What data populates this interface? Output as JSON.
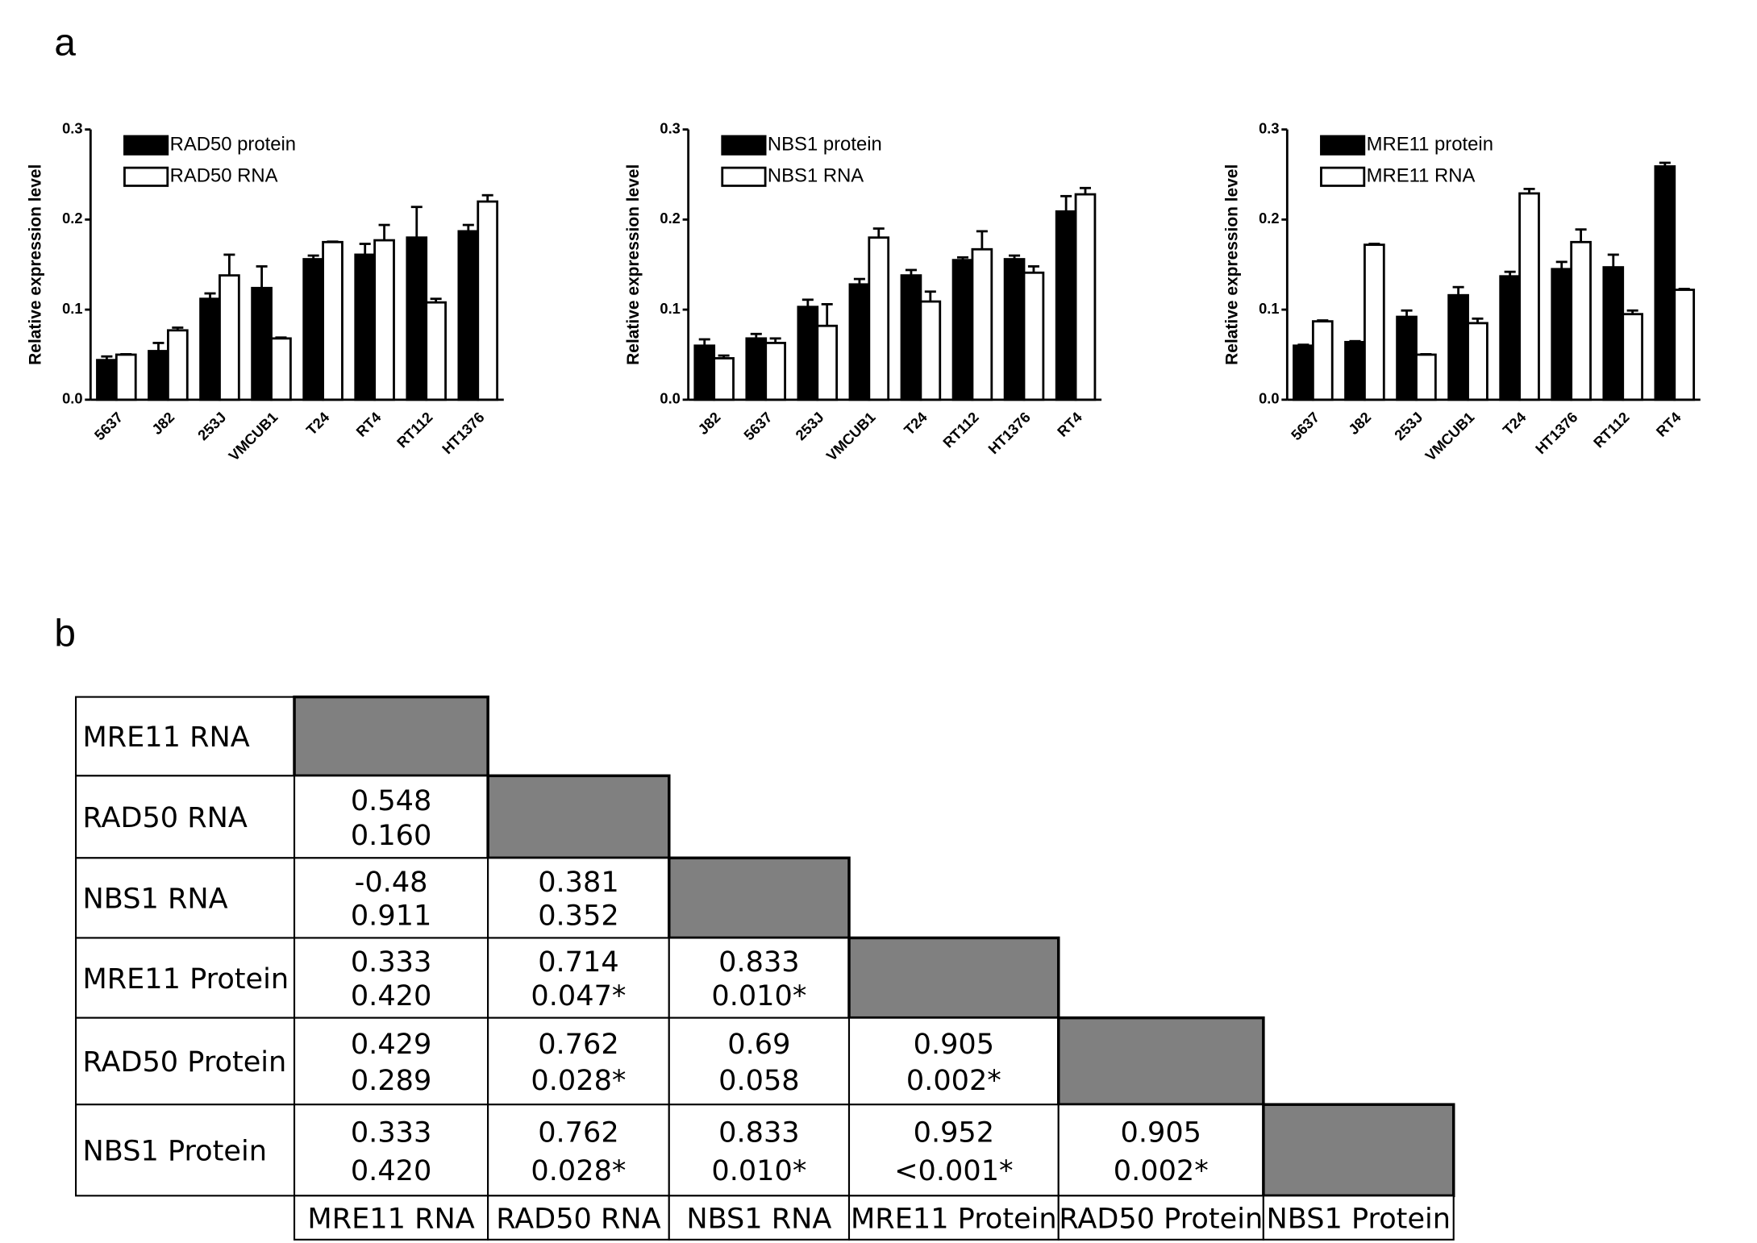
{
  "panel_labels": [
    "a",
    "b"
  ],
  "chart_data": [
    {
      "type": "bar",
      "ylabel": "Relative expression level",
      "categories": [
        "5637",
        "J82",
        "253J",
        "VMCUB1",
        "T24",
        "RT4",
        "RT112",
        "HT1376"
      ],
      "series": [
        {
          "name": "RAD50  protein",
          "color": "#000000",
          "values": [
            0.044,
            0.054,
            0.112,
            0.124,
            0.156,
            0.161,
            0.18,
            0.187
          ],
          "errors": [
            0.004,
            0.009,
            0.006,
            0.024,
            0.004,
            0.012,
            0.034,
            0.007
          ]
        },
        {
          "name": "RAD50  RNA",
          "color": "#ffffff",
          "values": [
            0.05,
            0.077,
            0.138,
            0.068,
            0.175,
            0.177,
            0.108,
            0.22
          ],
          "errors": [
            0.0005,
            0.003,
            0.023,
            0.001,
            0.0005,
            0.017,
            0.004,
            0.007
          ]
        }
      ],
      "ylim": [
        0,
        0.3
      ],
      "yticks": [
        {
          "value": 0,
          "label": "0.0"
        },
        0.1,
        0.2,
        0.3
      ]
    },
    {
      "type": "bar",
      "ylabel": "Relative expression level",
      "categories": [
        "J82",
        "5637",
        "253J",
        "VMCUB1",
        "T24",
        "RT112",
        "HT1376",
        "RT4"
      ],
      "series": [
        {
          "name": "NBS1 protein",
          "color": "#000000",
          "values": [
            0.06,
            0.068,
            0.103,
            0.128,
            0.138,
            0.155,
            0.156,
            0.209
          ],
          "errors": [
            0.007,
            0.005,
            0.008,
            0.006,
            0.006,
            0.003,
            0.004,
            0.017
          ]
        },
        {
          "name": "NBS1 RNA",
          "color": "#ffffff",
          "values": [
            0.046,
            0.063,
            0.082,
            0.18,
            0.109,
            0.167,
            0.141,
            0.228
          ],
          "errors": [
            0.003,
            0.005,
            0.024,
            0.01,
            0.011,
            0.02,
            0.007,
            0.007
          ]
        }
      ],
      "ylim": [
        0,
        0.3
      ],
      "yticks": [
        {
          "value": 0,
          "label": "0.0"
        },
        0.1,
        0.2,
        0.3
      ]
    },
    {
      "type": "bar",
      "ylabel": "Relative expression level",
      "categories": [
        "5637",
        "J82",
        "253J",
        "VMCUB1",
        "T24",
        "HT1376",
        "RT112",
        "RT4"
      ],
      "series": [
        {
          "name": "MRE11 protein",
          "color": "#000000",
          "values": [
            0.06,
            0.064,
            0.092,
            0.116,
            0.137,
            0.145,
            0.147,
            0.259
          ],
          "errors": [
            0.001,
            0.001,
            0.007,
            0.009,
            0.005,
            0.008,
            0.014,
            0.004
          ]
        },
        {
          "name": "MRE11 RNA",
          "color": "#ffffff",
          "values": [
            0.087,
            0.172,
            0.05,
            0.085,
            0.229,
            0.175,
            0.095,
            0.122
          ],
          "errors": [
            0.001,
            0.001,
            0.0005,
            0.005,
            0.005,
            0.014,
            0.004,
            0.001
          ]
        }
      ],
      "ylim": [
        0,
        0.3
      ],
      "yticks": [
        {
          "value": 0,
          "label": "0.0"
        },
        0.1,
        0.2,
        0.3
      ]
    }
  ],
  "table": {
    "columns": [
      "MRE11 RNA",
      "RAD50 RNA",
      "NBS1 RNA",
      "MRE11 Protein",
      "RAD50 Protein",
      "NBS1 Protein"
    ],
    "rows": [
      {
        "label": "MRE11 RNA",
        "cells": []
      },
      {
        "label": "RAD50 RNA",
        "cells": [
          [
            "0.548",
            "0.160"
          ]
        ]
      },
      {
        "label": "NBS1 RNA",
        "cells": [
          [
            "-0.48",
            "0.911"
          ],
          [
            "0.381",
            "0.352"
          ]
        ]
      },
      {
        "label": "MRE11 Protein",
        "cells": [
          [
            "0.333",
            "0.420"
          ],
          [
            "0.714",
            "0.047*"
          ],
          [
            "0.833",
            "0.010*"
          ]
        ]
      },
      {
        "label": "RAD50 Protein",
        "cells": [
          [
            "0.429",
            "0.289"
          ],
          [
            "0.762",
            "0.028*"
          ],
          [
            "0.69",
            "0.058"
          ],
          [
            "0.905",
            "0.002*"
          ]
        ]
      },
      {
        "label": "NBS1 Protein",
        "cells": [
          [
            "0.333",
            "0.420"
          ],
          [
            "0.762",
            "0.028*"
          ],
          [
            "0.833",
            "0.010*"
          ],
          [
            "0.952",
            "<0.001*"
          ],
          [
            "0.905",
            "0.002*"
          ]
        ]
      }
    ]
  }
}
